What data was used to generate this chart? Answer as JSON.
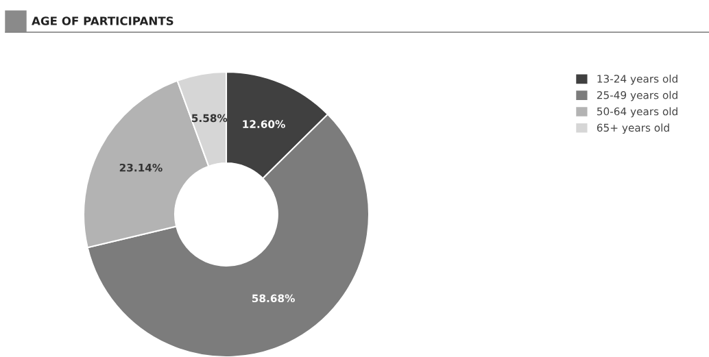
{
  "chart_data": {
    "type": "donut",
    "title": "AGE OF PARTICIPANTS",
    "categories": [
      "13-24 years old",
      "25-49 years old",
      "50-64 years old",
      "65+ years old"
    ],
    "values": [
      12.6,
      58.68,
      23.14,
      5.58
    ],
    "colors": [
      "#404040",
      "#7c7c7c",
      "#b3b3b3",
      "#d6d6d6"
    ],
    "value_labels": [
      "12.60%",
      "58.68%",
      "23.14%",
      "5.58%"
    ],
    "legend": "top right"
  }
}
